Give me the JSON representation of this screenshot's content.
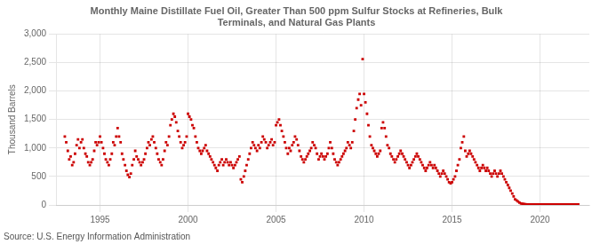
{
  "chart_data": {
    "type": "scatter",
    "title": "Monthly Maine Distillate Fuel Oil, Greater Than 500 ppm Sulfur Stocks at Refineries, Bulk\nTerminals, and Natural Gas Plants",
    "ylabel": "Thousand Barrels",
    "annotation": "Source: U.S. Energy Information Administration",
    "color": "#CC0000",
    "marker": "square",
    "grid": true,
    "xlim": [
      1992.5,
      2022.8
    ],
    "xticks": [
      1995,
      2000,
      2005,
      2010,
      2015,
      2020
    ],
    "ylim": [
      0,
      3000
    ],
    "yticks": [
      0,
      500,
      {
        "value": 1000,
        "label": "1,000"
      },
      {
        "value": 1500,
        "label": "1,500"
      },
      {
        "value": 2000,
        "label": "2,000"
      },
      {
        "value": 2500,
        "label": "2,500"
      },
      {
        "value": 3000,
        "label": "3,000"
      }
    ],
    "x": [
      1993.0,
      1993.08,
      1993.17,
      1993.25,
      1993.33,
      1993.42,
      1993.5,
      1993.58,
      1993.67,
      1993.75,
      1993.83,
      1993.92,
      1994.0,
      1994.08,
      1994.17,
      1994.25,
      1994.33,
      1994.42,
      1994.5,
      1994.58,
      1994.67,
      1994.75,
      1994.83,
      1994.92,
      1995.0,
      1995.08,
      1995.17,
      1995.25,
      1995.33,
      1995.42,
      1995.5,
      1995.58,
      1995.67,
      1995.75,
      1995.83,
      1995.92,
      1996.0,
      1996.08,
      1996.17,
      1996.25,
      1996.33,
      1996.42,
      1996.5,
      1996.58,
      1996.67,
      1996.75,
      1996.83,
      1996.92,
      1997.0,
      1997.08,
      1997.17,
      1997.25,
      1997.33,
      1997.42,
      1997.5,
      1997.58,
      1997.67,
      1997.75,
      1997.83,
      1997.92,
      1998.0,
      1998.08,
      1998.17,
      1998.25,
      1998.33,
      1998.42,
      1998.5,
      1998.58,
      1998.67,
      1998.75,
      1998.83,
      1998.92,
      1999.0,
      1999.08,
      1999.17,
      1999.25,
      1999.33,
      1999.42,
      1999.5,
      1999.58,
      1999.67,
      1999.75,
      1999.83,
      1999.92,
      2000.0,
      2000.08,
      2000.17,
      2000.25,
      2000.33,
      2000.42,
      2000.5,
      2000.58,
      2000.67,
      2000.75,
      2000.83,
      2000.92,
      2001.0,
      2001.08,
      2001.17,
      2001.25,
      2001.33,
      2001.42,
      2001.5,
      2001.58,
      2001.67,
      2001.75,
      2001.83,
      2001.92,
      2002.0,
      2002.08,
      2002.17,
      2002.25,
      2002.33,
      2002.42,
      2002.5,
      2002.58,
      2002.67,
      2002.75,
      2002.83,
      2002.92,
      2003.0,
      2003.08,
      2003.17,
      2003.25,
      2003.33,
      2003.42,
      2003.5,
      2003.58,
      2003.67,
      2003.75,
      2003.83,
      2003.92,
      2004.0,
      2004.08,
      2004.17,
      2004.25,
      2004.33,
      2004.42,
      2004.5,
      2004.58,
      2004.67,
      2004.75,
      2004.83,
      2004.92,
      2005.0,
      2005.08,
      2005.17,
      2005.25,
      2005.33,
      2005.42,
      2005.5,
      2005.58,
      2005.67,
      2005.75,
      2005.83,
      2005.92,
      2006.0,
      2006.08,
      2006.17,
      2006.25,
      2006.33,
      2006.42,
      2006.5,
      2006.58,
      2006.67,
      2006.75,
      2006.83,
      2006.92,
      2007.0,
      2007.08,
      2007.17,
      2007.25,
      2007.33,
      2007.42,
      2007.5,
      2007.58,
      2007.67,
      2007.75,
      2007.83,
      2007.92,
      2008.0,
      2008.08,
      2008.17,
      2008.25,
      2008.33,
      2008.42,
      2008.5,
      2008.58,
      2008.67,
      2008.75,
      2008.83,
      2008.92,
      2009.0,
      2009.08,
      2009.17,
      2009.25,
      2009.33,
      2009.42,
      2009.5,
      2009.58,
      2009.67,
      2009.75,
      2009.83,
      2009.92,
      2010.0,
      2010.08,
      2010.17,
      2010.25,
      2010.33,
      2010.42,
      2010.5,
      2010.58,
      2010.67,
      2010.75,
      2010.83,
      2010.92,
      2011.0,
      2011.08,
      2011.17,
      2011.25,
      2011.33,
      2011.42,
      2011.5,
      2011.58,
      2011.67,
      2011.75,
      2011.83,
      2011.92,
      2012.0,
      2012.08,
      2012.17,
      2012.25,
      2012.33,
      2012.42,
      2012.5,
      2012.58,
      2012.67,
      2012.75,
      2012.83,
      2012.92,
      2013.0,
      2013.08,
      2013.17,
      2013.25,
      2013.33,
      2013.42,
      2013.5,
      2013.58,
      2013.67,
      2013.75,
      2013.83,
      2013.92,
      2014.0,
      2014.08,
      2014.17,
      2014.25,
      2014.33,
      2014.42,
      2014.5,
      2014.58,
      2014.67,
      2014.75,
      2014.83,
      2014.92,
      2015.0,
      2015.08,
      2015.17,
      2015.25,
      2015.33,
      2015.42,
      2015.5,
      2015.58,
      2015.67,
      2015.75,
      2015.83,
      2015.92,
      2016.0,
      2016.08,
      2016.17,
      2016.25,
      2016.33,
      2016.42,
      2016.5,
      2016.58,
      2016.67,
      2016.75,
      2016.83,
      2016.92,
      2017.0,
      2017.08,
      2017.17,
      2017.25,
      2017.33,
      2017.42,
      2017.5,
      2017.58,
      2017.67,
      2017.75,
      2017.83,
      2017.92,
      2018.0,
      2018.08,
      2018.17,
      2018.25,
      2018.33,
      2018.42,
      2018.5,
      2018.58,
      2018.67,
      2018.75,
      2018.83,
      2018.92,
      2019.0,
      2019.08,
      2019.17,
      2019.25,
      2019.33,
      2019.42,
      2019.5,
      2019.58,
      2019.67,
      2019.75,
      2019.83,
      2019.92,
      2020.0,
      2020.08,
      2020.17,
      2020.25,
      2020.33,
      2020.42,
      2020.5,
      2020.58,
      2020.67,
      2020.75,
      2020.83,
      2020.92,
      2021.0,
      2021.08,
      2021.17,
      2021.25,
      2021.33,
      2021.42,
      2021.5,
      2021.58,
      2021.67,
      2021.75,
      2021.83,
      2021.92,
      2022.0,
      2022.08,
      2022.17
    ],
    "values": [
      1200,
      1100,
      950,
      800,
      850,
      700,
      750,
      900,
      1050,
      1150,
      1000,
      1100,
      1150,
      1000,
      900,
      850,
      750,
      700,
      750,
      800,
      950,
      1100,
      1050,
      1100,
      1200,
      1100,
      1000,
      900,
      800,
      750,
      700,
      800,
      900,
      1100,
      1050,
      1200,
      1350,
      1200,
      1100,
      900,
      800,
      700,
      600,
      530,
      490,
      550,
      700,
      800,
      950,
      850,
      800,
      750,
      700,
      750,
      800,
      900,
      1000,
      1100,
      1050,
      1150,
      1200,
      1100,
      1000,
      900,
      800,
      750,
      700,
      800,
      950,
      1100,
      1050,
      1200,
      1400,
      1500,
      1600,
      1550,
      1450,
      1300,
      1200,
      1100,
      1000,
      1050,
      1100,
      1200,
      1600,
      1550,
      1500,
      1400,
      1350,
      1200,
      1100,
      1000,
      950,
      900,
      950,
      1000,
      1050,
      950,
      900,
      850,
      800,
      750,
      700,
      650,
      600,
      700,
      750,
      800,
      700,
      750,
      800,
      750,
      700,
      750,
      700,
      650,
      700,
      750,
      800,
      850,
      450,
      400,
      500,
      600,
      700,
      800,
      900,
      1000,
      1100,
      1050,
      1000,
      950,
      1050,
      1000,
      1100,
      1200,
      1150,
      1100,
      1000,
      1050,
      1100,
      1150,
      1050,
      1100,
      1400,
      1450,
      1500,
      1400,
      1300,
      1200,
      1100,
      1000,
      900,
      1000,
      950,
      1050,
      1100,
      1200,
      1150,
      1050,
      950,
      850,
      800,
      750,
      800,
      850,
      900,
      950,
      1000,
      1100,
      1050,
      1000,
      900,
      800,
      850,
      900,
      850,
      800,
      850,
      900,
      1000,
      1100,
      1000,
      900,
      800,
      750,
      700,
      750,
      800,
      850,
      900,
      950,
      1000,
      1100,
      1050,
      1000,
      1100,
      1300,
      1500,
      1700,
      1850,
      1950,
      1750,
      2560,
      1950,
      1800,
      1600,
      1400,
      1200,
      1050,
      1000,
      950,
      900,
      850,
      900,
      950,
      1350,
      1450,
      1350,
      1200,
      1050,
      1000,
      900,
      850,
      800,
      750,
      800,
      850,
      900,
      950,
      900,
      850,
      800,
      750,
      700,
      650,
      700,
      750,
      800,
      850,
      900,
      850,
      800,
      750,
      700,
      650,
      600,
      650,
      700,
      750,
      700,
      650,
      700,
      650,
      600,
      550,
      500,
      550,
      600,
      550,
      500,
      450,
      400,
      380,
      400,
      450,
      500,
      600,
      700,
      800,
      1000,
      1100,
      1200,
      950,
      850,
      900,
      950,
      900,
      850,
      800,
      750,
      700,
      650,
      600,
      650,
      700,
      650,
      600,
      650,
      600,
      550,
      500,
      550,
      600,
      550,
      500,
      550,
      600,
      550,
      500,
      450,
      400,
      350,
      300,
      250,
      200,
      150,
      100,
      80,
      60,
      40,
      25,
      20,
      15,
      12,
      10,
      8,
      8,
      8,
      8,
      8,
      8,
      8,
      8,
      8,
      8,
      8,
      8,
      8,
      8,
      8,
      8,
      8,
      8,
      8,
      8,
      8,
      8,
      8,
      8,
      8,
      8,
      8,
      8,
      8,
      8,
      8,
      8,
      8,
      8,
      8
    ]
  }
}
